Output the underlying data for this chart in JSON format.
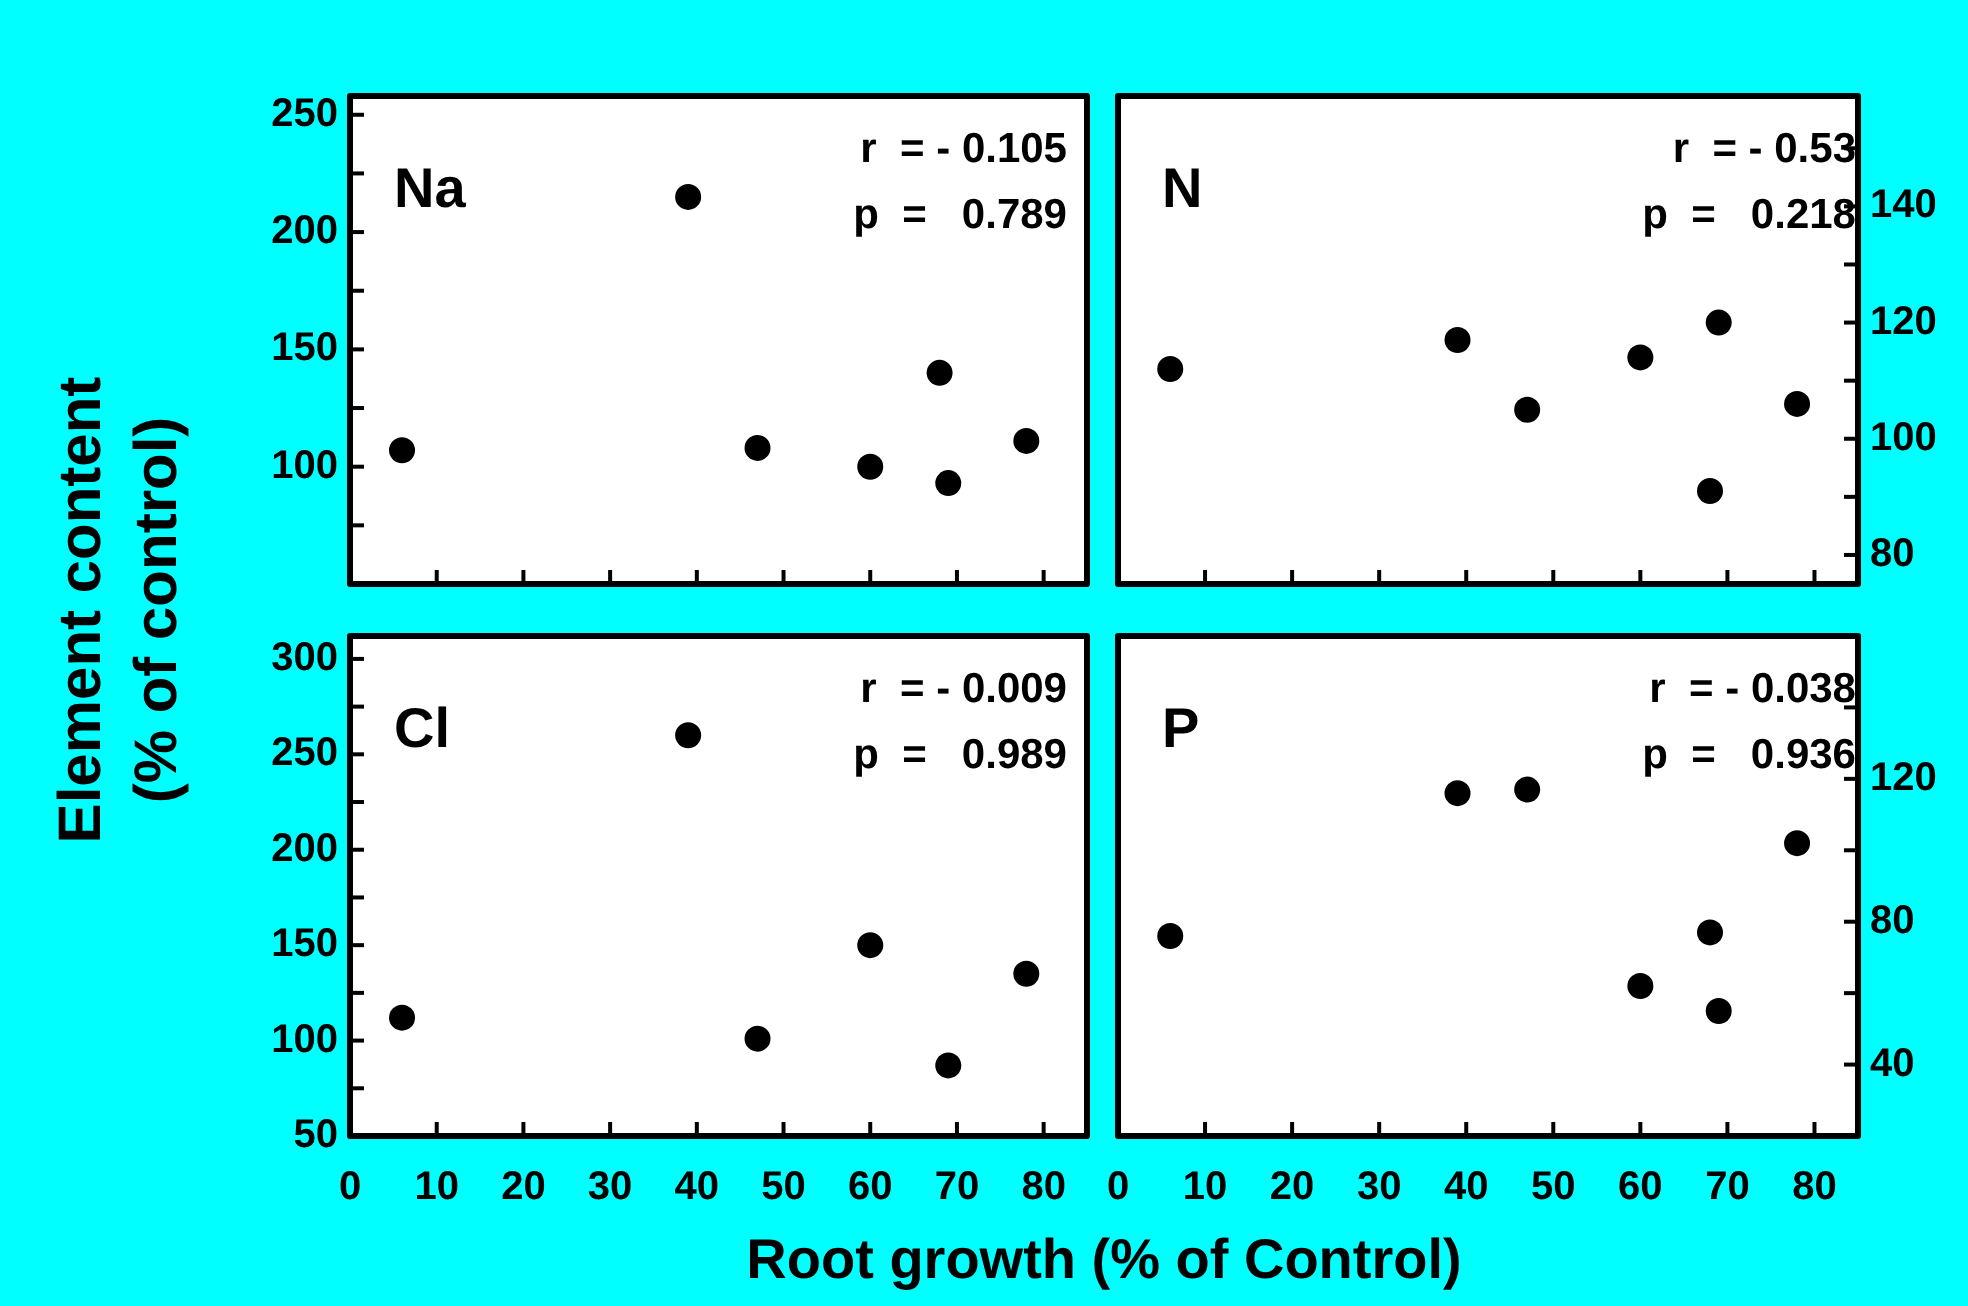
{
  "chart_data": [
    {
      "type": "scatter",
      "title": "Na",
      "ylabel": "Element  content\n(% of control)",
      "annotations": [
        "r  = - 0.105",
        "p  =   0.789"
      ],
      "marker": "circle",
      "tick_labels": "y",
      "x": [
        6,
        39,
        47,
        60,
        68,
        69,
        78
      ],
      "series": [
        {
          "color": "#000000",
          "values": [
            107,
            215,
            108,
            100,
            140,
            93,
            111
          ]
        }
      ],
      "xlim": [
        0,
        85
      ],
      "xticks": [
        {
          "value": 0,
          "label": null
        },
        {
          "value": 10,
          "label": null
        },
        {
          "value": 20,
          "label": null
        },
        {
          "value": 30,
          "label": null
        },
        {
          "value": 40,
          "label": null
        },
        {
          "value": 50,
          "label": null
        },
        {
          "value": 60,
          "label": null
        },
        {
          "value": 70,
          "label": null
        },
        {
          "value": 80,
          "label": null
        }
      ],
      "ylim": [
        50,
        258
      ],
      "yticks": [
        {
          "value": 75,
          "label": null
        },
        100,
        {
          "value": 125,
          "label": null
        },
        150,
        {
          "value": 175,
          "label": null
        },
        200,
        {
          "value": 225,
          "label": null
        },
        250
      ]
    },
    {
      "type": "scatter",
      "title": "N",
      "annotations": [
        "r  = - 0.53",
        "p  =   0.218"
      ],
      "marker": "circle",
      "tick_labels": "y",
      "x": [
        6,
        39,
        47,
        60,
        68,
        69,
        78
      ],
      "series": [
        {
          "color": "#000000",
          "axis": "y2",
          "values": [
            112,
            117,
            105,
            114,
            91,
            120,
            106
          ]
        }
      ],
      "xlim": [
        0,
        85
      ],
      "xticks": [
        {
          "value": 0,
          "label": null
        },
        {
          "value": 10,
          "label": null
        },
        {
          "value": 20,
          "label": null
        },
        {
          "value": 30,
          "label": null
        },
        {
          "value": 40,
          "label": null
        },
        {
          "value": 50,
          "label": null
        },
        {
          "value": 60,
          "label": null
        },
        {
          "value": 70,
          "label": null
        },
        {
          "value": 80,
          "label": null
        }
      ],
      "y2lim": [
        75,
        159
      ],
      "y2ticks": [
        80,
        {
          "value": 90,
          "label": null
        },
        100,
        {
          "value": 110,
          "label": null
        },
        120,
        {
          "value": 130,
          "label": null
        },
        140,
        {
          "value": 150,
          "label": null
        }
      ]
    },
    {
      "type": "scatter",
      "title": "Cl",
      "xlabel": "Root growth (% of Control)",
      "annotations": [
        "r  = - 0.009",
        "p  =   0.989"
      ],
      "marker": "circle",
      "x": [
        6,
        39,
        47,
        60,
        69,
        78
      ],
      "series": [
        {
          "color": "#000000",
          "values": [
            112,
            260,
            101,
            150,
            87,
            135
          ]
        }
      ],
      "xlim": [
        0,
        85
      ],
      "xticks": [
        0,
        10,
        20,
        30,
        40,
        50,
        60,
        70,
        80
      ],
      "ylim": [
        50,
        312
      ],
      "yticks": [
        50,
        {
          "value": 75,
          "label": null
        },
        100,
        {
          "value": 125,
          "label": null
        },
        150,
        {
          "value": 175,
          "label": null
        },
        200,
        {
          "value": 225,
          "label": null
        },
        250,
        {
          "value": 275,
          "label": null
        },
        300
      ]
    },
    {
      "type": "scatter",
      "title": "P",
      "annotations": [
        "r  = - 0.038",
        "p  =   0.936"
      ],
      "marker": "circle",
      "x": [
        6,
        39,
        47,
        60,
        68,
        69,
        78
      ],
      "series": [
        {
          "color": "#000000",
          "axis": "y2",
          "values": [
            76,
            116,
            117,
            62,
            77,
            55,
            102
          ]
        }
      ],
      "xlim": [
        0,
        85
      ],
      "xticks": [
        0,
        10,
        20,
        30,
        40,
        50,
        60,
        70,
        80
      ],
      "y2lim": [
        20,
        160
      ],
      "y2ticks": [
        40,
        {
          "value": 60,
          "label": null
        },
        80,
        {
          "value": 100,
          "label": null
        },
        120,
        {
          "value": 140,
          "label": null
        }
      ]
    }
  ]
}
